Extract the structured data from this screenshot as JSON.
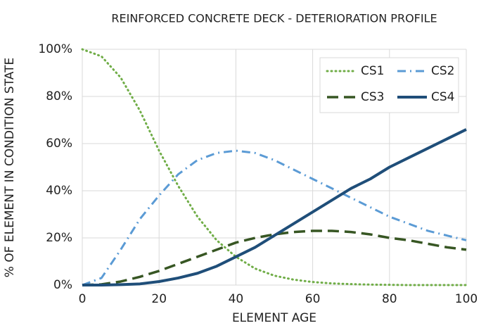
{
  "chart_data": {
    "type": "line",
    "title": "REINFORCED CONCRETE DECK - DETERIORATION PROFILE",
    "x_label": "ELEMENT AGE",
    "y_label": "% OF ELEMENT IN CONDITION STATE",
    "x": [
      0,
      5,
      10,
      15,
      20,
      25,
      30,
      35,
      40,
      45,
      50,
      55,
      60,
      65,
      70,
      75,
      80,
      85,
      90,
      95,
      100
    ],
    "series": [
      {
        "name": "CS1",
        "color": "#70ad47",
        "line_style": "dotted",
        "values": [
          100,
          97,
          88,
          74,
          57,
          42,
          29,
          19,
          12,
          7,
          4,
          2.3,
          1.3,
          0.7,
          0.4,
          0.2,
          0.1,
          0,
          0,
          0,
          0
        ]
      },
      {
        "name": "CS2",
        "color": "#5b9bd5",
        "line_style": "dashdot",
        "values": [
          0,
          3,
          15,
          28,
          38,
          47,
          53,
          56,
          57,
          56,
          53,
          49,
          45,
          41,
          37,
          33,
          29,
          26,
          23,
          21,
          19
        ]
      },
      {
        "name": "CS3",
        "color": "#375623",
        "line_style": "longdash",
        "values": [
          0,
          0.3,
          1.5,
          3.5,
          6,
          9,
          12,
          15,
          18,
          20,
          21.5,
          22.5,
          23,
          23,
          22.5,
          21.5,
          20,
          19,
          17.5,
          16,
          15
        ]
      },
      {
        "name": "CS4",
        "color": "#1f4e79",
        "line_style": "solid",
        "values": [
          0,
          0,
          0.2,
          0.5,
          1.5,
          3,
          5,
          8,
          12,
          16,
          21,
          26,
          31,
          36,
          41,
          45,
          50,
          54,
          58,
          62,
          66
        ]
      }
    ],
    "xlim": [
      0,
      100
    ],
    "xticks": [
      0,
      20,
      40,
      60,
      80,
      100
    ],
    "ylim": [
      0,
      100
    ],
    "yticks": [
      {
        "value": 0,
        "label": "0%"
      },
      {
        "value": 20,
        "label": "20%"
      },
      {
        "value": 40,
        "label": "40%"
      },
      {
        "value": 60,
        "label": "60%"
      },
      {
        "value": 80,
        "label": "80%"
      },
      {
        "value": 100,
        "label": "100%"
      }
    ],
    "grid": true,
    "legend": "upper right"
  }
}
